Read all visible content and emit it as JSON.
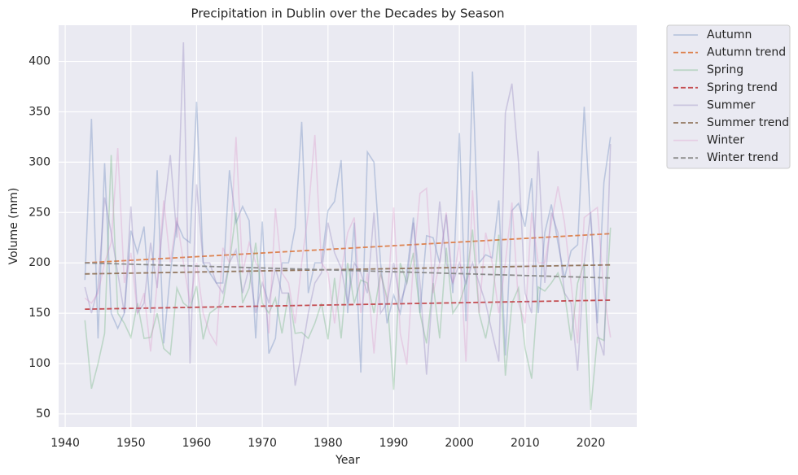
{
  "chart_data": {
    "type": "line",
    "title": "Precipitation in Dublin over the Decades by Season",
    "xlabel": "Year",
    "ylabel": "Volume (mm)",
    "x": [
      1943,
      1944,
      1945,
      1946,
      1947,
      1948,
      1949,
      1950,
      1951,
      1952,
      1953,
      1954,
      1955,
      1956,
      1957,
      1958,
      1959,
      1960,
      1961,
      1962,
      1963,
      1964,
      1965,
      1966,
      1967,
      1968,
      1969,
      1970,
      1971,
      1972,
      1973,
      1974,
      1975,
      1976,
      1977,
      1978,
      1979,
      1980,
      1981,
      1982,
      1983,
      1984,
      1985,
      1986,
      1987,
      1988,
      1989,
      1990,
      1991,
      1992,
      1993,
      1994,
      1995,
      1996,
      1997,
      1998,
      1999,
      2000,
      2001,
      2002,
      2003,
      2004,
      2005,
      2006,
      2007,
      2008,
      2009,
      2010,
      2011,
      2012,
      2013,
      2014,
      2015,
      2016,
      2017,
      2018,
      2019,
      2020,
      2021,
      2022,
      2023
    ],
    "series": [
      {
        "name": "Autumn",
        "color": "#4c72b0",
        "opacity": 0.3,
        "dashed": false,
        "values": [
          183,
          343,
          125,
          299,
          150,
          135,
          150,
          232,
          210,
          236,
          150,
          292,
          120,
          190,
          240,
          225,
          220,
          360,
          200,
          190,
          180,
          180,
          292,
          240,
          256,
          242,
          125,
          241,
          110,
          125,
          200,
          200,
          235,
          340,
          170,
          200,
          200,
          252,
          261,
          302,
          150,
          240,
          91,
          310,
          300,
          200,
          140,
          168,
          150,
          190,
          245,
          150,
          227,
          225,
          200,
          248,
          170,
          329,
          142,
          390,
          200,
          208,
          205,
          262,
          108,
          252,
          259,
          236,
          284,
          150,
          230,
          258,
          220,
          185,
          212,
          218,
          355,
          240,
          140,
          280,
          325
        ]
      },
      {
        "name": "Autumn trend",
        "color": "#dd8452",
        "opacity": 1,
        "dashed": true,
        "x": [
          1943,
          2023
        ],
        "values": [
          200,
          229
        ]
      },
      {
        "name": "Spring",
        "color": "#55a868",
        "opacity": 0.3,
        "dashed": false,
        "values": [
          143,
          75,
          100,
          130,
          307,
          150,
          140,
          126,
          160,
          125,
          126,
          150,
          115,
          109,
          175,
          160,
          155,
          177,
          124,
          150,
          155,
          160,
          200,
          250,
          160,
          175,
          220,
          160,
          150,
          165,
          130,
          170,
          130,
          131,
          125,
          140,
          160,
          124,
          185,
          125,
          200,
          160,
          183,
          180,
          150,
          190,
          165,
          74,
          200,
          180,
          210,
          150,
          120,
          180,
          125,
          215,
          150,
          160,
          180,
          233,
          150,
          125,
          160,
          228,
          88,
          160,
          175,
          115,
          85,
          176,
          172,
          180,
          190,
          170,
          123,
          180,
          200,
          54,
          126,
          123,
          235
        ]
      },
      {
        "name": "Spring trend",
        "color": "#c44e52",
        "opacity": 1,
        "dashed": true,
        "x": [
          1943,
          2023
        ],
        "values": [
          154,
          163
        ]
      },
      {
        "name": "Summer",
        "color": "#8172b3",
        "opacity": 0.3,
        "dashed": false,
        "values": [
          176,
          150,
          175,
          265,
          230,
          190,
          150,
          256,
          150,
          160,
          220,
          175,
          250,
          307,
          225,
          419,
          100,
          278,
          200,
          200,
          180,
          170,
          200,
          213,
          170,
          195,
          150,
          180,
          160,
          195,
          170,
          170,
          78,
          110,
          150,
          180,
          190,
          240,
          210,
          195,
          160,
          200,
          190,
          170,
          250,
          150,
          160,
          200,
          160,
          180,
          240,
          180,
          89,
          180,
          261,
          200,
          180,
          200,
          180,
          200,
          180,
          160,
          130,
          102,
          349,
          378,
          300,
          170,
          150,
          311,
          180,
          250,
          230,
          170,
          160,
          93,
          200,
          250,
          130,
          108,
          318
        ]
      },
      {
        "name": "Summer trend",
        "color": "#937860",
        "opacity": 1,
        "dashed": true,
        "x": [
          1943,
          2023
        ],
        "values": [
          189,
          198
        ]
      },
      {
        "name": "Winter",
        "color": "#da8bc3",
        "opacity": 0.3,
        "dashed": false,
        "values": [
          165,
          160,
          170,
          200,
          220,
          314,
          180,
          210,
          150,
          170,
          112,
          180,
          262,
          200,
          245,
          200,
          160,
          200,
          150,
          130,
          119,
          215,
          200,
          325,
          190,
          220,
          200,
          190,
          130,
          254,
          190,
          180,
          140,
          200,
          250,
          327,
          200,
          190,
          140,
          190,
          230,
          245,
          150,
          190,
          110,
          190,
          160,
          255,
          130,
          99,
          200,
          269,
          274,
          170,
          200,
          250,
          180,
          220,
          102,
          272,
          150,
          230,
          200,
          150,
          200,
          260,
          160,
          140,
          250,
          200,
          200,
          240,
          276,
          240,
          180,
          120,
          245,
          250,
          255,
          170,
          126
        ]
      },
      {
        "name": "Winter trend",
        "color": "#8c8c8c",
        "opacity": 1,
        "dashed": true,
        "x": [
          1943,
          2023
        ],
        "values": [
          200,
          185
        ]
      }
    ],
    "xlim": [
      1939,
      2027
    ],
    "xticks": [
      1940,
      1950,
      1960,
      1970,
      1980,
      1990,
      2000,
      2010,
      2020
    ],
    "ylim": [
      37,
      436
    ],
    "yticks": [
      50,
      100,
      150,
      200,
      250,
      300,
      350,
      400
    ],
    "grid": true,
    "legend": "outside"
  }
}
